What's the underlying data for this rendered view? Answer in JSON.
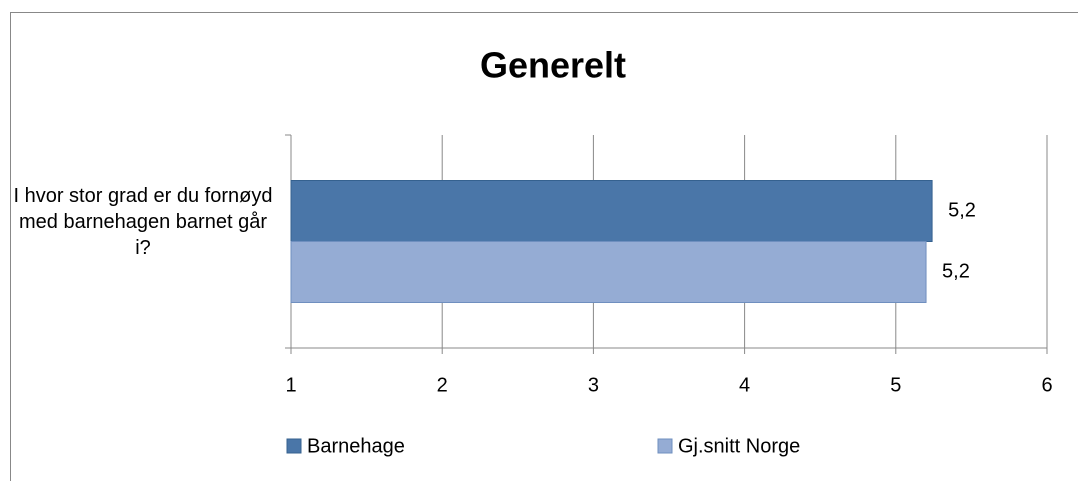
{
  "chart_data": {
    "type": "hbar",
    "title": "Generelt",
    "categories": [
      "I hvor stor grad er du fornøyd med barnehagen barnet går i?"
    ],
    "series": [
      {
        "name": "Barnehage",
        "color": "#4a76a8",
        "values": [
          5.24
        ],
        "value_labels": [
          "5,2"
        ]
      },
      {
        "name": "Gj.snitt Norge",
        "color": "#95acd4",
        "values": [
          5.2
        ],
        "value_labels": [
          "5,2"
        ]
      }
    ],
    "xlim": [
      1,
      6
    ],
    "xticks": [
      1,
      2,
      3,
      4,
      5,
      6
    ],
    "grid": true
  }
}
